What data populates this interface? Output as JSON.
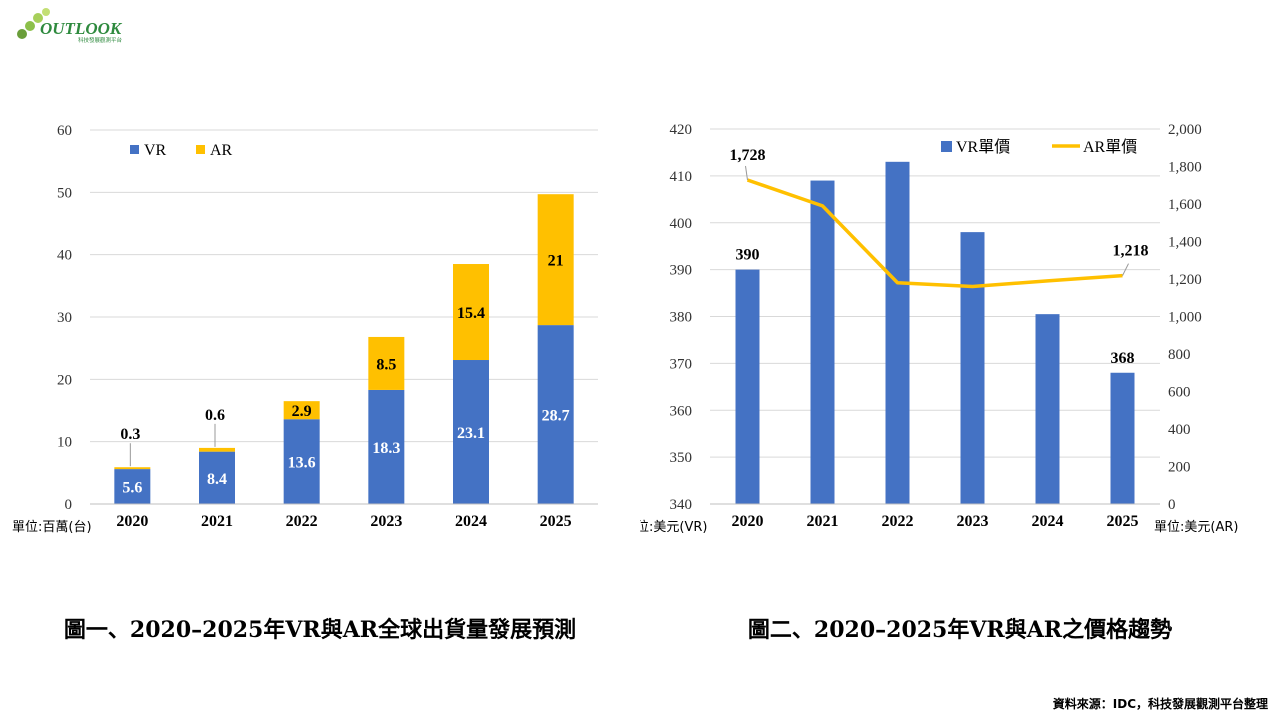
{
  "logo": {
    "name": "OUTLOOK",
    "tagline": "科技發展觀測平台"
  },
  "captions": {
    "chart1": "圖一、2020–2025年VR與AR全球出貨量發展預測",
    "chart2": "圖二、2020–2025年VR與AR之價格趨勢"
  },
  "source": "資料來源：IDC，科技發展觀測平台整理",
  "colors": {
    "vr": "#4472C4",
    "ar": "#FFC000",
    "grid": "#D9D9D9"
  },
  "chart_data": [
    {
      "type": "bar",
      "stacked": true,
      "categories": [
        "2020",
        "2021",
        "2022",
        "2023",
        "2024",
        "2025"
      ],
      "series": [
        {
          "name": "VR",
          "values": [
            5.6,
            8.4,
            13.6,
            18.3,
            23.1,
            28.7
          ],
          "labels": [
            "5.6",
            "8.4",
            "13.6",
            "18.3",
            "23.1",
            "28.7"
          ]
        },
        {
          "name": "AR",
          "values": [
            0.3,
            0.6,
            2.9,
            8.5,
            15.4,
            21
          ],
          "labels": [
            "0.3",
            "0.6",
            "2.9",
            "8.5",
            "15.4",
            "21"
          ]
        }
      ],
      "ylim": [
        0,
        60
      ],
      "yticks": [
        0,
        10,
        20,
        30,
        40,
        50,
        60
      ],
      "unit_label": "單位:百萬(台)",
      "legend": "top-left",
      "grid": true
    },
    {
      "type": "bar+line",
      "categories": [
        "2020",
        "2021",
        "2022",
        "2023",
        "2024",
        "2025"
      ],
      "bar_series": {
        "name": "VR單價",
        "values": [
          390,
          409,
          413,
          398,
          380.5,
          368
        ]
      },
      "line_series": {
        "name": "AR單價",
        "values": [
          1728,
          1590,
          1180,
          1160,
          1190,
          1218
        ]
      },
      "bar_labels": [
        {
          "index": 0,
          "text": "390"
        },
        {
          "index": 5,
          "text": "368"
        }
      ],
      "line_labels": [
        {
          "index": 0,
          "text": "1,728"
        },
        {
          "index": 5,
          "text": "1,218"
        }
      ],
      "ylim_left": [
        340,
        420
      ],
      "yticks_left": [
        340,
        350,
        360,
        370,
        380,
        390,
        400,
        410,
        420
      ],
      "ylim_right": [
        0,
        2000
      ],
      "yticks_right": [
        "0",
        "200",
        "400",
        "600",
        "800",
        "1,000",
        "1,200",
        "1,400",
        "1,600",
        "1,800",
        "2,000"
      ],
      "unit_left": "單位:美元(VR)",
      "unit_right": "單位:美元(AR)",
      "legend": "top-right",
      "grid": true
    }
  ]
}
